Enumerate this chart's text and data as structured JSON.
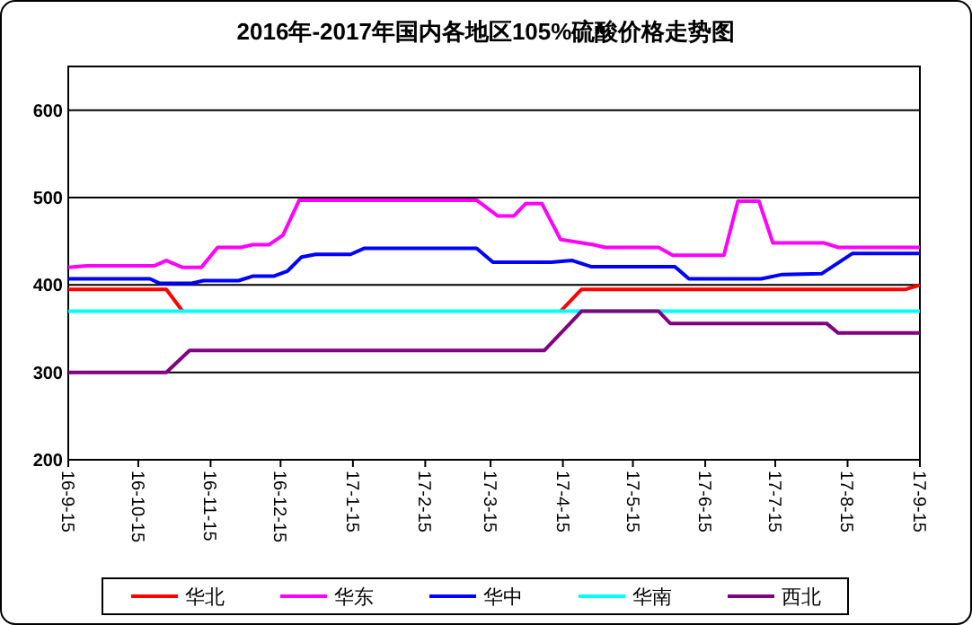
{
  "chart_data": {
    "type": "line",
    "title": "2016年-2017年国内各地区105%硫酸价格走势图",
    "xlim": [
      "2016-09-15",
      "2017-09-15"
    ],
    "xticks": [
      {
        "value": "2016-09-15",
        "label": "16-9-15"
      },
      {
        "value": "2016-10-15",
        "label": "16-10-15"
      },
      {
        "value": "2016-11-15",
        "label": "16-11-15"
      },
      {
        "value": "2016-12-15",
        "label": "16-12-15"
      },
      {
        "value": "2017-01-15",
        "label": "17-1-15"
      },
      {
        "value": "2017-02-15",
        "label": "17-2-15"
      },
      {
        "value": "2017-03-15",
        "label": "17-3-15"
      },
      {
        "value": "2017-04-15",
        "label": "17-4-15"
      },
      {
        "value": "2017-05-15",
        "label": "17-5-15"
      },
      {
        "value": "2017-06-15",
        "label": "17-6-15"
      },
      {
        "value": "2017-07-15",
        "label": "17-7-15"
      },
      {
        "value": "2017-08-15",
        "label": "17-8-15"
      },
      {
        "value": "2017-09-15",
        "label": "17-9-15"
      }
    ],
    "ylim": [
      200,
      650
    ],
    "yticks": [
      200,
      300,
      400,
      500,
      600
    ],
    "grid": "y",
    "legend": "bottom",
    "marker": "none",
    "line_style": "solid",
    "series": [
      {
        "name": "华北",
        "color": "#ff0000",
        "x": [
          "2016-09-15",
          "2016-10-27",
          "2016-11-03",
          "2016-11-10",
          "2017-04-14",
          "2017-04-23",
          "2017-09-09",
          "2017-09-15"
        ],
        "values": [
          395,
          395,
          370,
          null,
          370,
          395,
          395,
          400
        ]
      },
      {
        "name": "华东",
        "color": "#ff00ff",
        "x": [
          "2016-09-15",
          "2016-09-23",
          "2016-10-22",
          "2016-10-27",
          "2016-11-03",
          "2016-11-11",
          "2016-11-18",
          "2016-11-28",
          "2016-12-03",
          "2016-12-10",
          "2016-12-16",
          "2016-12-23",
          "2017-03-09",
          "2017-03-18",
          "2017-03-25",
          "2017-03-30",
          "2017-04-06",
          "2017-04-14",
          "2017-04-28",
          "2017-05-03",
          "2017-05-26",
          "2017-06-01",
          "2017-06-23",
          "2017-06-29",
          "2017-07-08",
          "2017-07-14",
          "2017-08-05",
          "2017-08-11",
          "2017-09-15"
        ],
        "values": [
          420,
          422,
          422,
          428,
          420,
          420,
          443,
          443,
          446,
          446,
          457,
          497,
          497,
          479,
          479,
          493,
          493,
          452,
          446,
          443,
          443,
          434,
          434,
          496,
          496,
          448,
          448,
          443,
          443
        ]
      },
      {
        "name": "华中",
        "color": "#0000ff",
        "x": [
          "2016-09-15",
          "2016-10-20",
          "2016-10-24",
          "2016-11-07",
          "2016-11-12",
          "2016-11-27",
          "2016-12-03",
          "2016-12-12",
          "2016-12-18",
          "2016-12-24",
          "2016-12-30",
          "2017-01-14",
          "2017-01-20",
          "2017-03-09",
          "2017-03-16",
          "2017-04-10",
          "2017-04-19",
          "2017-04-27",
          "2017-06-02",
          "2017-06-08",
          "2017-07-09",
          "2017-07-18",
          "2017-08-04",
          "2017-08-17",
          "2017-09-15"
        ],
        "values": [
          407,
          407,
          402,
          402,
          405,
          405,
          410,
          410,
          416,
          432,
          435,
          435,
          442,
          442,
          426,
          426,
          428,
          421,
          421,
          407,
          407,
          412,
          413,
          436,
          436
        ]
      },
      {
        "name": "华南",
        "color": "#00ffff",
        "x": [
          "2016-09-15",
          "2017-09-15"
        ],
        "values": [
          370,
          370
        ]
      },
      {
        "name": "西北",
        "color": "#800080",
        "x": [
          "2016-09-15",
          "2016-10-27",
          "2016-11-06",
          "2017-04-07",
          "2017-04-23",
          "2017-05-26",
          "2017-05-31",
          "2017-08-06",
          "2017-08-11",
          "2017-09-15"
        ],
        "values": [
          300,
          300,
          325,
          325,
          370,
          370,
          356,
          356,
          345,
          345
        ]
      }
    ]
  }
}
